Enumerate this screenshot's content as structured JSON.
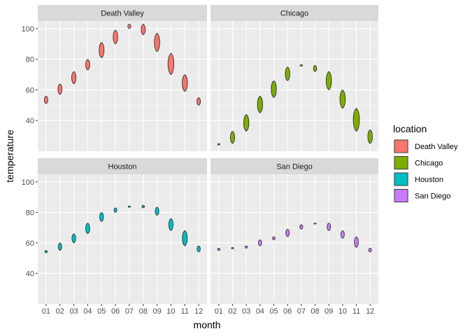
{
  "chart_data": {
    "type": "violin",
    "xlabel": "month",
    "ylabel": "temperature",
    "months": [
      "01",
      "02",
      "03",
      "04",
      "05",
      "06",
      "07",
      "08",
      "09",
      "10",
      "11",
      "12"
    ],
    "y_ticks": [
      40,
      60,
      80,
      100
    ],
    "ylim": [
      20,
      105
    ],
    "grid": true,
    "legend": {
      "title": "location",
      "position": "right",
      "items": [
        {
          "label": "Death Valley",
          "color": "#F8766D"
        },
        {
          "label": "Chicago",
          "color": "#7CAE00"
        },
        {
          "label": "Houston",
          "color": "#00BFC4"
        },
        {
          "label": "San Diego",
          "color": "#C77CFF"
        }
      ]
    },
    "series": [
      {
        "name": "Death Valley",
        "color": "#F8766D",
        "ranges": [
          [
            51,
            56
          ],
          [
            57,
            64
          ],
          [
            64,
            72
          ],
          [
            73,
            80
          ],
          [
            81,
            91
          ],
          [
            90,
            99
          ],
          [
            100,
            103
          ],
          [
            96,
            103
          ],
          [
            85,
            97
          ],
          [
            70,
            84
          ],
          [
            59,
            70
          ],
          [
            50,
            55
          ]
        ]
      },
      {
        "name": "Chicago",
        "color": "#7CAE00",
        "ranges": [
          [
            24,
            25
          ],
          [
            25,
            33
          ],
          [
            33,
            44
          ],
          [
            45,
            56
          ],
          [
            55,
            66
          ],
          [
            66,
            75
          ],
          [
            75.5,
            76.5
          ],
          [
            72,
            76
          ],
          [
            60,
            72
          ],
          [
            48,
            60
          ],
          [
            33,
            48
          ],
          [
            25,
            34
          ]
        ]
      },
      {
        "name": "Houston",
        "color": "#00BFC4",
        "ranges": [
          [
            53.5,
            55
          ],
          [
            55,
            60
          ],
          [
            60,
            66
          ],
          [
            66,
            73
          ],
          [
            74,
            80
          ],
          [
            80,
            83
          ],
          [
            83.3,
            84.3
          ],
          [
            83,
            84.7
          ],
          [
            78,
            83.5
          ],
          [
            68,
            76
          ],
          [
            58,
            68
          ],
          [
            54,
            58
          ]
        ]
      },
      {
        "name": "San Diego",
        "color": "#C77CFF",
        "ranges": [
          [
            55,
            56.5
          ],
          [
            56,
            57
          ],
          [
            56.5,
            58
          ],
          [
            58,
            62
          ],
          [
            62,
            64
          ],
          [
            64,
            69
          ],
          [
            69,
            72
          ],
          [
            72.3,
            73
          ],
          [
            68,
            73
          ],
          [
            63,
            68
          ],
          [
            57,
            64
          ],
          [
            54,
            56.5
          ]
        ]
      }
    ]
  }
}
